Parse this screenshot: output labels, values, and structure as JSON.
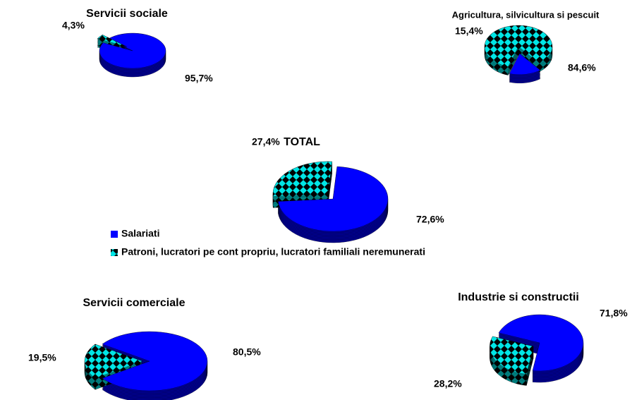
{
  "legend": [
    {
      "name": "Salariati",
      "color": "#0000ff"
    },
    {
      "name": "Patroni, lucratori pe cont propriu, lucratori familiali neremunerati",
      "color": "#00e5e5"
    }
  ],
  "chart_data": [
    {
      "type": "pie",
      "title": "Servicii sociale",
      "values": [
        95.7,
        4.3
      ],
      "value_labels": [
        "95,7%",
        "4,3%"
      ]
    },
    {
      "type": "pie",
      "title": "Agricultura, silvicultura si  pescuit",
      "values": [
        15.4,
        84.6
      ],
      "value_labels": [
        "15,4%",
        "84,6%"
      ]
    },
    {
      "type": "pie",
      "title": "TOTAL",
      "values": [
        72.6,
        27.4
      ],
      "value_labels": [
        "72,6%",
        "27,4%"
      ]
    },
    {
      "type": "pie",
      "title": "Servicii comerciale",
      "values": [
        80.5,
        19.5
      ],
      "value_labels": [
        "80,5%",
        "19,5%"
      ]
    },
    {
      "type": "pie",
      "title": "Industrie si constructii",
      "values": [
        71.8,
        28.2
      ],
      "value_labels": [
        "71,8%",
        "28,2%"
      ]
    }
  ]
}
